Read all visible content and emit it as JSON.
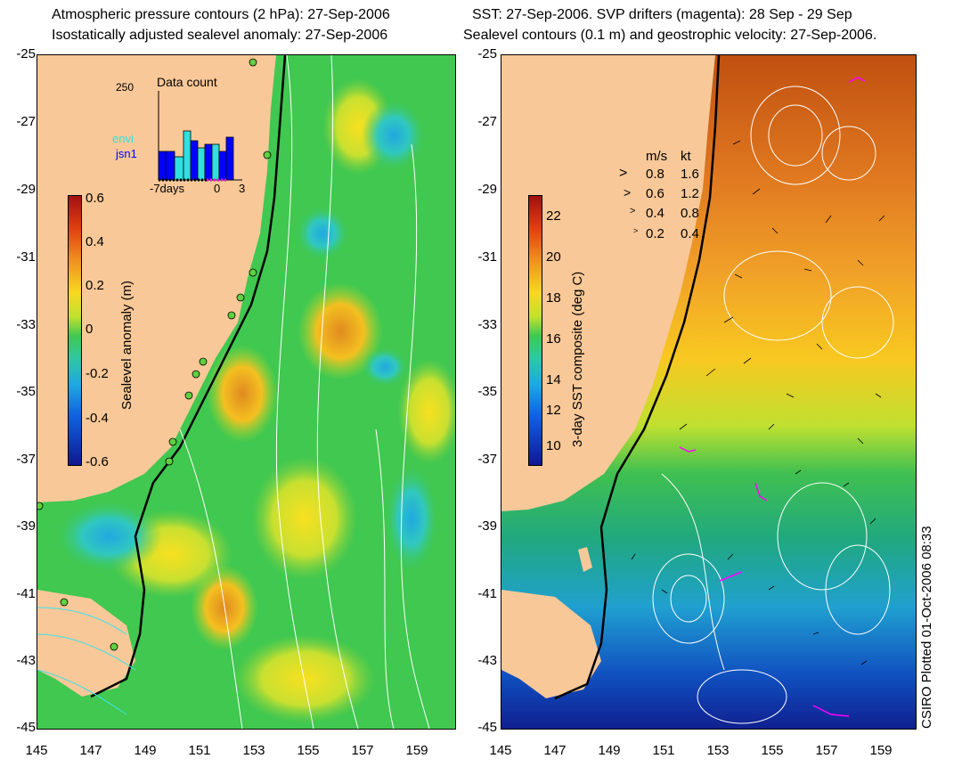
{
  "left_panel": {
    "title_line1": "Atmospheric pressure contours (2 hPa): 27-Sep-2006",
    "title_line2": "Isostatically adjusted sealevel anomaly: 27-Sep-2006",
    "colorbar": {
      "title": "Sealevel anomaly (m)",
      "ticks": [
        "0.6",
        "0.4",
        "0.2",
        "0",
        "-0.2",
        "-0.4",
        "-0.6"
      ]
    },
    "data_count": {
      "title": "Data count",
      "max_label": "250",
      "missions": [
        "envi",
        "jsn1"
      ],
      "x_ticks": [
        "-7days",
        "0",
        "3"
      ]
    }
  },
  "right_panel": {
    "title_line1": "SST: 27-Sep-2006. SVP drifters (magenta): 28 Sep - 29 Sep",
    "title_line2": "Sealevel contours (0.1 m) and geostrophic velocity: 27-Sep-2006.",
    "colorbar": {
      "title": "3-day SST composite (deg C)",
      "ticks": [
        "22",
        "20",
        "18",
        "16",
        "14",
        "12",
        "10"
      ]
    },
    "velocity_legend": {
      "headers": [
        "m/s",
        "kt"
      ],
      "rows": [
        [
          "0.8",
          "1.6"
        ],
        [
          "0.6",
          "1.2"
        ],
        [
          "0.4",
          "0.8"
        ],
        [
          "0.2",
          "0.4"
        ]
      ]
    }
  },
  "axes": {
    "y_ticks": [
      "-25",
      "-27",
      "-29",
      "-31",
      "-33",
      "-35",
      "-37",
      "-39",
      "-41",
      "-43",
      "-45"
    ],
    "x_ticks": [
      "145",
      "147",
      "149",
      "151",
      "153",
      "155",
      "157",
      "159"
    ]
  },
  "credit": "CSIRO Plotted 01-Oct-2006 08:33",
  "colors": {
    "land": "#f8c898",
    "ocean_green": "#3cc84a",
    "coast_line": "#000000",
    "drifter": "#ff00ff",
    "contour": "#ffffff"
  }
}
